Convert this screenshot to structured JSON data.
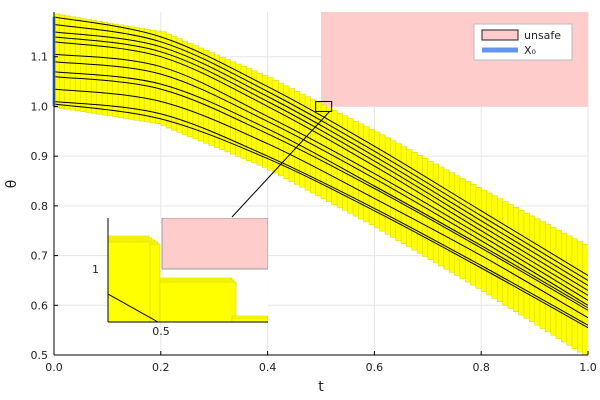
{
  "chart_data": {
    "type": "line",
    "xlabel": "t",
    "ylabel": "θ",
    "xlim": [
      0,
      1
    ],
    "ylim": [
      0.5,
      1.19
    ],
    "xticks": [
      "0.0",
      "0.2",
      "0.4",
      "0.6",
      "0.8",
      "1.0"
    ],
    "yticks": [
      "0.5",
      "0.6",
      "0.7",
      "0.8",
      "0.9",
      "1.0",
      "1.1"
    ],
    "grid": true,
    "legend": {
      "placement": "top-right",
      "entries": [
        {
          "label": "unsafe",
          "color": "#ffcccc"
        },
        {
          "label": "X₀",
          "color": "#6495ed"
        }
      ]
    },
    "unsafe_region": {
      "x": [
        0.5,
        1.0
      ],
      "y": [
        1.0,
        1.19
      ]
    },
    "initial_set": {
      "x": 0.0,
      "y": [
        1.0,
        1.18
      ]
    },
    "flowpipe_color": "#ffff00",
    "trajectories": [
      {
        "x": [
          0,
          0.2,
          0.4,
          0.6,
          0.8,
          1.0
        ],
        "y": [
          1.18,
          1.14,
          1.04,
          0.92,
          0.79,
          0.66
        ]
      },
      {
        "x": [
          0,
          0.2,
          0.4,
          0.6,
          0.8,
          1.0
        ],
        "y": [
          1.165,
          1.13,
          1.03,
          0.91,
          0.78,
          0.65
        ]
      },
      {
        "x": [
          0,
          0.2,
          0.4,
          0.6,
          0.8,
          1.0
        ],
        "y": [
          1.15,
          1.12,
          1.02,
          0.9,
          0.77,
          0.64
        ]
      },
      {
        "x": [
          0,
          0.2,
          0.4,
          0.6,
          0.8,
          1.0
        ],
        "y": [
          1.14,
          1.11,
          1.01,
          0.89,
          0.76,
          0.63
        ]
      },
      {
        "x": [
          0,
          0.2,
          0.4,
          0.6,
          0.8,
          1.0
        ],
        "y": [
          1.13,
          1.1,
          1.0,
          0.88,
          0.75,
          0.62
        ]
      },
      {
        "x": [
          0,
          0.2,
          0.4,
          0.6,
          0.8,
          1.0
        ],
        "y": [
          1.105,
          1.08,
          0.98,
          0.865,
          0.74,
          0.61
        ]
      },
      {
        "x": [
          0,
          0.2,
          0.4,
          0.6,
          0.8,
          1.0
        ],
        "y": [
          1.09,
          1.065,
          0.97,
          0.855,
          0.73,
          0.6
        ]
      },
      {
        "x": [
          0,
          0.2,
          0.4,
          0.6,
          0.8,
          1.0
        ],
        "y": [
          1.07,
          1.045,
          0.955,
          0.84,
          0.72,
          0.595
        ]
      },
      {
        "x": [
          0,
          0.2,
          0.4,
          0.6,
          0.8,
          1.0
        ],
        "y": [
          1.06,
          1.035,
          0.945,
          0.835,
          0.715,
          0.59
        ]
      },
      {
        "x": [
          0,
          0.2,
          0.4,
          0.6,
          0.8,
          1.0
        ],
        "y": [
          1.035,
          1.01,
          0.925,
          0.815,
          0.7,
          0.575
        ]
      },
      {
        "x": [
          0,
          0.2,
          0.4,
          0.6,
          0.8,
          1.0
        ],
        "y": [
          1.01,
          0.985,
          0.9,
          0.795,
          0.68,
          0.56
        ]
      },
      {
        "x": [
          0,
          0.2,
          0.4,
          0.6,
          0.8,
          1.0
        ],
        "y": [
          1.005,
          0.975,
          0.895,
          0.79,
          0.675,
          0.555
        ]
      }
    ],
    "inset": {
      "xtick": "0.5",
      "ytick": "1",
      "zoom_x": [
        0.49,
        0.52
      ],
      "zoom_y": [
        0.99,
        1.01
      ]
    }
  }
}
